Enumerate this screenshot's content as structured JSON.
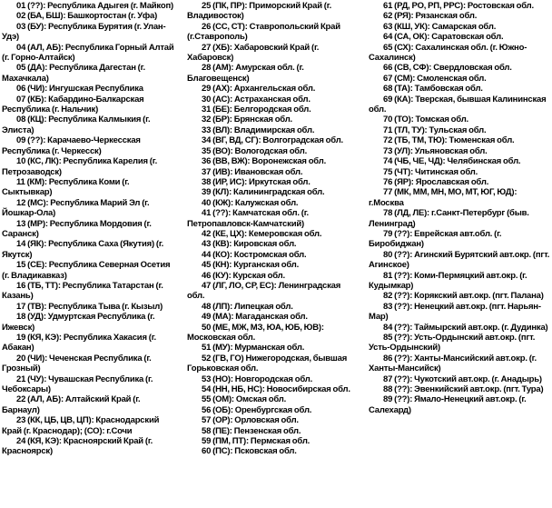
{
  "colors": {
    "background": "#ffffff",
    "text": "#000000"
  },
  "document": {
    "kind": "scanned-text-list-of-russian-region-codes",
    "columns": {
      "col1": [
        "01 (??): Республика Адыгея (г. Майкоп)",
        "02 (БА, БШ): Башкортостан (г. Уфа)",
        "03 (БУ): Республика Бурятия (г. Улан-Удэ)",
        "04 (АЛ, АБ): Республика Горный Алтай (г. Горно-Алтайск)",
        "05 (ДА): Республика Дагестан (г. Махачкала)",
        "06 (ЧИ): Ингушская Республика",
        "07 (КБ): Кабардино-Балкарская Республика (г. Нальчик)",
        "08 (КЦ): Республика Калмыкия (г. Элиста)",
        "09 (??): Карачаево-Черкесская Республика (г. Черкесск)",
        "10 (КС, ЛК): Республика Карелия (г. Петрозаводск)",
        "11 (КМ): Республика Коми (г. Сыктывкар)",
        "12 (МС): Республика Марий Эл (г. Йошкар-Ола)",
        "13 (МР): Республика Мордовия (г. Саранск)",
        "14 (ЯК): Республика Саха (Якутия) (г. Якутск)",
        "15 (СЕ): Республика Северная Осетия (г. Владикавказ)",
        "16 (ТБ, ТТ): Республика Татарстан (г. Казань)",
        "17 (ТВ): Республика Тыва (г. Кызыл)",
        "18 (УД): Удмуртская Республика (г. Ижевск)",
        "19 (КЯ, КЭ): Республика Хакасия (г. Абакан)",
        "20 (ЧИ): Чеченская Республика (г. Грозный)",
        "21 (ЧУ): Чувашская Республика (г. Чебоксары)",
        "22 (АЛ, АБ): Алтайский Край (г. Барнаул)",
        "23 (КК, ЦБ, ЦВ, ЦП): Краснодарский Край (г. Краснодар); (СО): г.Сочи",
        "24 (КЯ, КЭ): Красноярский Край (г. Красноярск)"
      ],
      "col2": [
        "25 (ПК, ПР): Приморский Край (г. Владивосток)",
        "26 (СС, СТ): Ставропольский Край (г.Ставрополь)",
        "27 (ХБ): Хабаровский Край (г. Хабаровск)",
        "28 (АМ): Амурская обл. (г. Благовещенск)",
        "29 (АХ): Архангельская обл.",
        "30 (АС): Астраханская обл.",
        "31 (БЕ): Белгородская обл.",
        "32 (БР): Брянская обл.",
        "33 (ВЛ): Владимирская обл.",
        "34 (ВГ, ВД, СГ): Волгоградская обл.",
        "35 (ВО): Вологодская обл.",
        "36 (ВВ, ВЖ): Воронежская обл.",
        "37 (ИВ): Ивановская обл.",
        "38 (ИР, ИС): Иркутская обл.",
        "39 (КЛ): Калининградская обл.",
        "40 (КЖ): Калужская обл.",
        "41 (??): Камчатская обл. (г. Петропавловск-Камчатский)",
        "42 (КЕ, ЦХ): Кемеровская обл.",
        "43 (КВ): Кировская обл.",
        "44 (КО): Костромская обл.",
        "45 (КН): Курганская обл.",
        "46 (КУ): Курская обл.",
        "47 (ЛГ, ЛО, СР, ЕС): Ленинградская обл.",
        "48 (ЛП): Липецкая обл.",
        "49 (МА): Магаданская обл.",
        "50 (МЕ, МЖ, МЗ, ЮА, ЮБ, ЮВ): Московская обл.",
        "51 (МУ): Мурманская обл.",
        "52 (ГВ, ГО) Нижегородская, бывшая Горьковская обл.",
        "53 (НО): Новгородская обл.",
        "54 (НН, НБ, НС): Новосибирская обл.",
        "55 (ОМ): Омская обл.",
        "56 (ОБ): Оренбургская обл.",
        "57 (ОР): Орловская обл.",
        "58 (ПЕ): Пензенская обл.",
        "59 (ПМ, ПТ): Пермская обл.",
        "60 (ПС): Псковская обл."
      ],
      "col3": [
        "61 (РД, РО, РП, РРС): Ростовская обл.",
        "62 (РЯ): Рязанская обл.",
        "63 (КШ, УК): Самарская обл.",
        "64 (СА, ОК): Саратовская обл.",
        "65 (СХ): Сахалинская обл. (г. Южно-Сахалинск)",
        "66 (СВ, СФ): Свердловская обл.",
        "67 (СМ): Смоленская обл.",
        "68 (ТА): Тамбовская обл.",
        "69 (КА): Тверская, бывшая Калининская обл.",
        "70 (ТО): Томская обл.",
        "71 (ТЛ, ТУ): Тульская обл.",
        "72 (ТБ, ТМ, ТЮ): Тюменская обл.",
        "73 (УЛ): Ульяновская обл.",
        "74 (ЧБ, ЧЕ, ЧД): Челябинская обл.",
        "75 (ЧТ): Читинская обл.",
        "76 (ЯР): Ярославская обл.",
        "77 (МК, ММ, МН, МО, МТ, ЮГ, ЮД): г.Москва",
        "78 (ЛД, ЛЕ): г.Санкт-Петербург (быв. Ленинград)",
        "79 (??): Еврейская авт.обл. (г. Биробиджан)",
        "80 (??): Агинский Бурятский авт.окр. (пгт. Агинское)",
        "81 (??): Коми-Пермяцкий авт.окр. (г. Кудымкар)",
        "82 (??): Корякский авт.окр. (пгт. Палана)",
        "83 (??): Ненецкий авт.окр. (пгт. Нарьян-Мар)",
        "84 (??): Таймырский авт.окр. (г. Дудинка)",
        "85 (??): Усть-Ордынский авт.окр. (пгт. Усть-Ордынский)",
        "86 (??): Ханты-Мансийский авт.окр. (г. Ханты-Мансийск)",
        "87 (??): Чукотский авт.окр. (г. Анадырь)",
        "88 (??): Эвенкийский авт.окр. (пгт. Тура)",
        "89 (??): Ямало-Ненецкий авт.окр. (г. Салехард)"
      ]
    }
  }
}
